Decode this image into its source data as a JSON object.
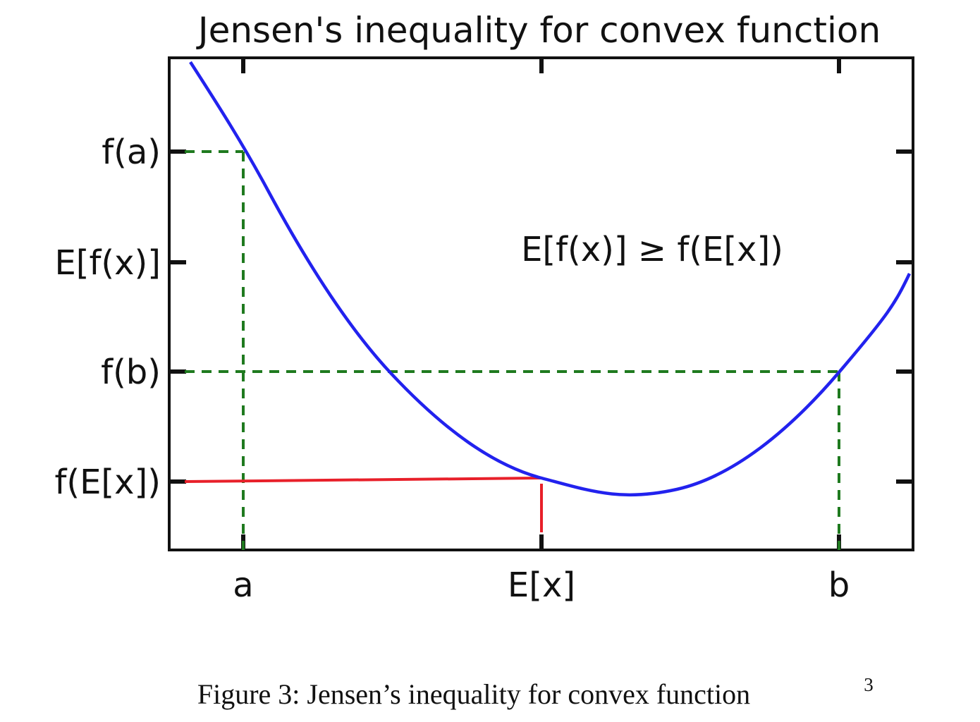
{
  "figure": {
    "title": "Jensen's inequality for convex function",
    "y_labels": [
      "f(a)",
      "E[f(x)]",
      "f(b)",
      "f(E[x])"
    ],
    "x_labels": [
      "a",
      "E[x]",
      "b"
    ],
    "annotation": "E[f(x)] ≥ f(E[x])",
    "caption": "Figure 3: Jensen’s inequality for convex function",
    "footnote_mark": "3"
  }
}
